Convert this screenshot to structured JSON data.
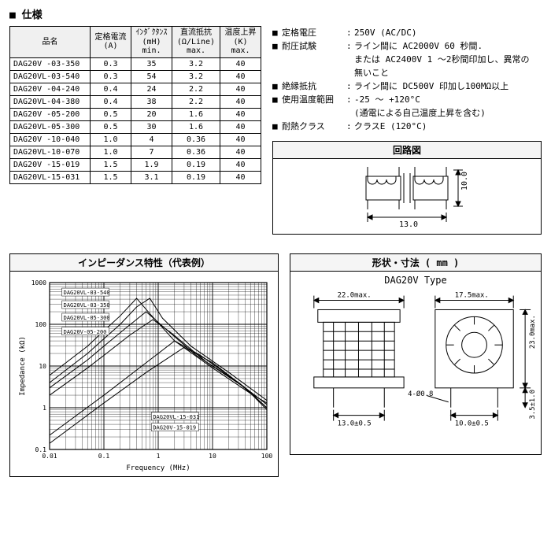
{
  "section_title": "■ 仕様",
  "spec_table": {
    "headers": [
      "品名",
      "定格電流\n(A)",
      "ｲﾝﾀﾞｸﾀﾝｽ\n(mH)\nmin.",
      "直流抵抗\n(Ω/Line)\nmax.",
      "温度上昇\n(K)\nmax."
    ],
    "rows": [
      [
        "DAG20V  -03-350",
        "0.3",
        "35",
        "3.2",
        "40"
      ],
      [
        "DAG20VL-03-540",
        "0.3",
        "54",
        "3.2",
        "40"
      ],
      [
        "DAG20V  -04-240",
        "0.4",
        "24",
        "2.2",
        "40"
      ],
      [
        "DAG20VL-04-380",
        "0.4",
        "38",
        "2.2",
        "40"
      ],
      [
        "DAG20V  -05-200",
        "0.5",
        "20",
        "1.6",
        "40"
      ],
      [
        "DAG20VL-05-300",
        "0.5",
        "30",
        "1.6",
        "40"
      ],
      [
        "DAG20V  -10-040",
        "1.0",
        "4",
        "0.36",
        "40"
      ],
      [
        "DAG20VL-10-070",
        "1.0",
        "7",
        "0.36",
        "40"
      ],
      [
        "DAG20V  -15-019",
        "1.5",
        "1.9",
        "0.19",
        "40"
      ],
      [
        "DAG20VL-15-031",
        "1.5",
        "3.1",
        "0.19",
        "40"
      ]
    ]
  },
  "spec_list": [
    {
      "label": "定格電圧",
      "value": "250V (AC/DC)"
    },
    {
      "label": "耐圧試験",
      "value": "ライン間に AC2000V 60 秒間.",
      "cont": [
        "または AC2400V 1 ～2秒間印加し、異常の",
        "無いこと"
      ]
    },
    {
      "label": "絶縁抵抗",
      "value": "ライン間に DC500V 印加し100MΩ以上"
    },
    {
      "label": "使用温度範囲",
      "value": "-25 ～ +120°C",
      "cont": [
        "(通電による自己温度上昇を含む)"
      ]
    },
    {
      "label": "耐熱クラス",
      "value": "クラスE (120°C)"
    }
  ],
  "circuit": {
    "title": "回路図",
    "dim_x": "13.0",
    "dim_y": "10.0"
  },
  "impedance_panel_title": "インピーダンス特性（代表例）",
  "chart": {
    "xlabel": "Frequency  (MHz)",
    "ylabel": "Impedance  (kΩ)",
    "xlim": [
      0.01,
      100
    ],
    "ylim": [
      0.1,
      1000
    ],
    "xticks": [
      "0.01",
      "0.1",
      "1",
      "10",
      "100"
    ],
    "yticks": [
      "0.1",
      "1",
      "10",
      "100",
      "1000"
    ],
    "series_labels": [
      "DAG20VL-03-540",
      "DAG20VL-03-350",
      "DAG20VL-05-300",
      "DAG20V-05-200",
      "DAG20VL-15-031",
      "DAG20V-15-019"
    ],
    "grid_color": "#000000",
    "line_color": "#000000",
    "background_color": "#ffffff"
  },
  "dim_panel": {
    "title": "形状・寸法 ( mm )",
    "type_label": "DAG20V Type",
    "labels": {
      "w1": "22.0max.",
      "w2": "17.5max.",
      "h1": "23.0max.",
      "p1": "13.0±0.5",
      "p2": "10.0±0.5",
      "lead_d": "4-Ø0.8",
      "lead_h": "3.5±1.0"
    }
  }
}
